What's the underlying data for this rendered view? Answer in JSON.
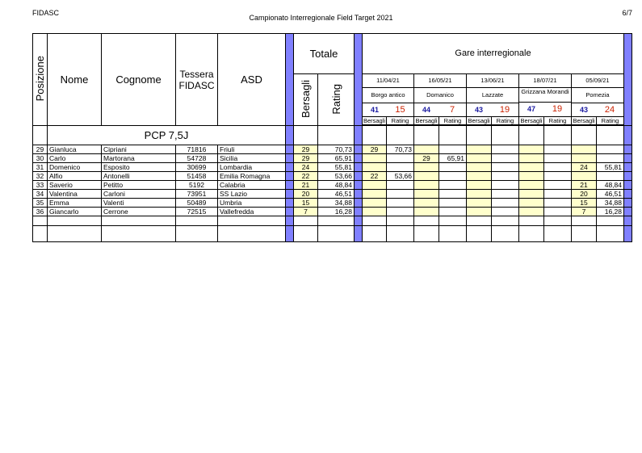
{
  "header": {
    "left": "FIDASC",
    "title": "Campionato Interregionale Field Target 2021",
    "page": "6/7"
  },
  "columns": {
    "posizione": "Posizione",
    "nome": "Nome",
    "cognome": "Cognome",
    "tessera_line1": "Tessera",
    "tessera_line2": "FIDASC",
    "asd": "ASD",
    "totale": "Totale",
    "bersagli": "Bersagli",
    "rating": "Rating",
    "gare": "Gare interregionale"
  },
  "gare": [
    {
      "date": "11/04/21",
      "place": "Borgo antico",
      "targets": "41",
      "score": "15",
      "sub1": "Bersagli",
      "sub2": "Rating"
    },
    {
      "date": "16/05/21",
      "place": "Domanico",
      "targets": "44",
      "score": "7",
      "sub1": "Bersagli",
      "sub2": "Rating"
    },
    {
      "date": "13/06/21",
      "place": "Lazzate",
      "targets": "43",
      "score": "19",
      "sub1": "Bersagli",
      "sub2": "Rating"
    },
    {
      "date": "18/07/21",
      "place": "Grizzana Morandi",
      "targets": "47",
      "score": "19",
      "sub1": "Bersagli",
      "sub2": "Rating"
    },
    {
      "date": "05/09/21",
      "place": "Pomezia",
      "targets": "43",
      "score": "24",
      "sub1": "Bersagli",
      "sub2": "Rating"
    }
  ],
  "category": "PCP 7,5J",
  "rows": [
    {
      "pos": "29",
      "nome": "Gianluca",
      "cognome": "Cipriani",
      "tessera": "71816",
      "asd": "Friuli",
      "bers": "29",
      "rating": "70,73",
      "g": [
        [
          "29",
          "70,73"
        ],
        [
          "",
          ""
        ],
        [
          "",
          ""
        ],
        [
          "",
          ""
        ],
        [
          "",
          ""
        ]
      ]
    },
    {
      "pos": "30",
      "nome": "Carlo",
      "cognome": "Martorana",
      "tessera": "54728",
      "asd": "Sicilia",
      "bers": "29",
      "rating": "65,91",
      "g": [
        [
          "",
          ""
        ],
        [
          "29",
          "65,91"
        ],
        [
          "",
          ""
        ],
        [
          "",
          ""
        ],
        [
          "",
          ""
        ]
      ]
    },
    {
      "pos": "31",
      "nome": "Domenico",
      "cognome": "Esposito",
      "tessera": "30699",
      "asd": "Lombardia",
      "bers": "24",
      "rating": "55,81",
      "g": [
        [
          "",
          ""
        ],
        [
          "",
          ""
        ],
        [
          "",
          ""
        ],
        [
          "",
          ""
        ],
        [
          "24",
          "55,81"
        ]
      ]
    },
    {
      "pos": "32",
      "nome": "Alfio",
      "cognome": "Antonelli",
      "tessera": "51458",
      "asd": "Emilia Romagna",
      "bers": "22",
      "rating": "53,66",
      "g": [
        [
          "22",
          "53,66"
        ],
        [
          "",
          ""
        ],
        [
          "",
          ""
        ],
        [
          "",
          ""
        ],
        [
          "",
          ""
        ]
      ]
    },
    {
      "pos": "33",
      "nome": "Saverio",
      "cognome": "Petitto",
      "tessera": "5192",
      "asd": "Calabria",
      "bers": "21",
      "rating": "48,84",
      "g": [
        [
          "",
          ""
        ],
        [
          "",
          ""
        ],
        [
          "",
          ""
        ],
        [
          "",
          ""
        ],
        [
          "21",
          "48,84"
        ]
      ]
    },
    {
      "pos": "34",
      "nome": "Valentina",
      "cognome": "Carloni",
      "tessera": "73951",
      "asd": "SS Lazio",
      "bers": "20",
      "rating": "46,51",
      "g": [
        [
          "",
          ""
        ],
        [
          "",
          ""
        ],
        [
          "",
          ""
        ],
        [
          "",
          ""
        ],
        [
          "20",
          "46,51"
        ]
      ]
    },
    {
      "pos": "35",
      "nome": "Emma",
      "cognome": "Valenti",
      "tessera": "50489",
      "asd": "Umbria",
      "bers": "15",
      "rating": "34,88",
      "g": [
        [
          "",
          ""
        ],
        [
          "",
          ""
        ],
        [
          "",
          ""
        ],
        [
          "",
          ""
        ],
        [
          "15",
          "34,88"
        ]
      ]
    },
    {
      "pos": "36",
      "nome": "Giancarlo",
      "cognome": "Cerrone",
      "tessera": "72515",
      "asd": "Vallefredda",
      "bers": "7",
      "rating": "16,28",
      "g": [
        [
          "",
          ""
        ],
        [
          "",
          ""
        ],
        [
          "",
          ""
        ],
        [
          "",
          ""
        ],
        [
          "7",
          "16,28"
        ]
      ]
    }
  ],
  "colors": {
    "separator": "#8080ff",
    "highlight": "#ffffcc",
    "targets": "#1a1aa0",
    "score": "#cc2200"
  }
}
